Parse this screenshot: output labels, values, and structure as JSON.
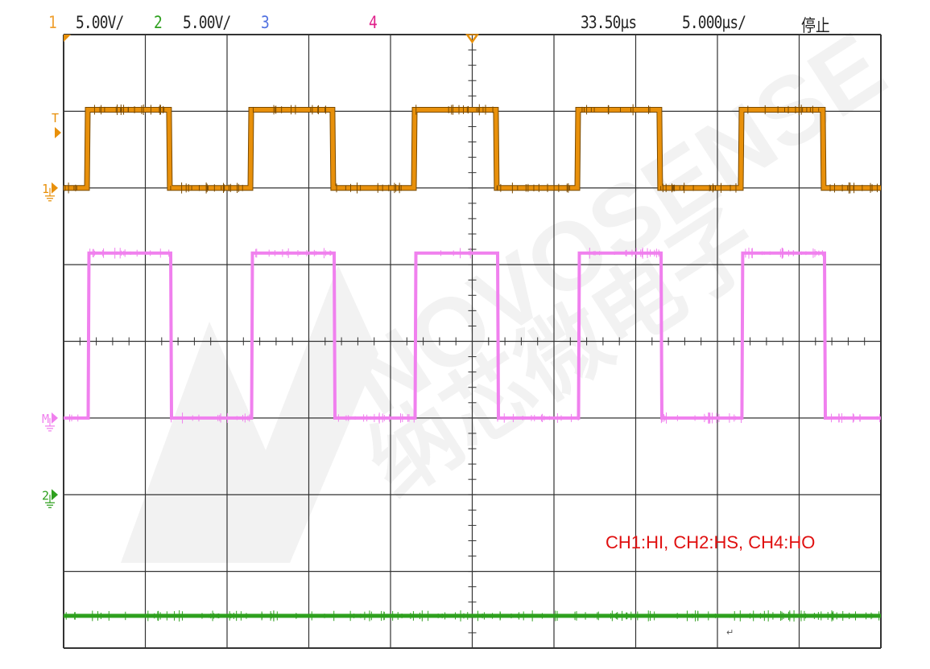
{
  "header": {
    "ch1_label": "1",
    "ch1_scale": "5.00V/",
    "ch2_label": "2",
    "ch2_scale": "5.00V/",
    "ch3_label": "3",
    "ch4_label": "4",
    "delay": "33.50µs",
    "timebase": "5.000µs/",
    "status": "停止"
  },
  "annotation": "CH1:HI, CH2:HS, CH4:HO",
  "return_mark": "↵",
  "watermark": {
    "text_en": "NOVOSENSE",
    "text_cn": "纳芯微电子"
  },
  "colors": {
    "ch1": "#e8900a",
    "ch1_edge": "#7a4a00",
    "ch2": "#2ea01e",
    "ch3": "#5070e0",
    "ch4_label": "#e0208a",
    "ch4_trace": "#f080ee",
    "grid": "#333333",
    "annotation": "#e01010"
  },
  "chart_data": {
    "type": "line",
    "title": "",
    "xlabel": "",
    "ylabel": "",
    "x_unit": "µs",
    "xlim": [
      0,
      50
    ],
    "grid": {
      "x_divisions": 10,
      "y_divisions": 8,
      "on": true
    },
    "markers": {
      "trigger_level_label": "T",
      "ch1_ground": "1",
      "ch4_ground": "M",
      "ch2_ground": "2"
    },
    "series": [
      {
        "name": "1",
        "unit": "V",
        "volts_per_div": 5,
        "ground_div": 2.0,
        "low": 0,
        "high": 5.1,
        "rising_us": [
          1.43,
          11.43,
          21.43,
          31.43,
          41.43
        ],
        "falling_us": [
          6.45,
          16.45,
          26.45,
          36.45,
          46.45
        ]
      },
      {
        "name": "4",
        "unit": "div",
        "ground_div": -1.0,
        "low": 0,
        "high": 2.15,
        "rising_us": [
          1.5,
          11.5,
          21.5,
          31.5,
          41.5
        ],
        "falling_us": [
          6.55,
          16.55,
          26.55,
          36.55,
          46.55
        ]
      },
      {
        "name": "2",
        "unit": "V",
        "volts_per_div": 5,
        "ground_div": -2.0,
        "low": -7.9,
        "high": -7.9,
        "rising_us": [],
        "falling_us": []
      }
    ]
  }
}
